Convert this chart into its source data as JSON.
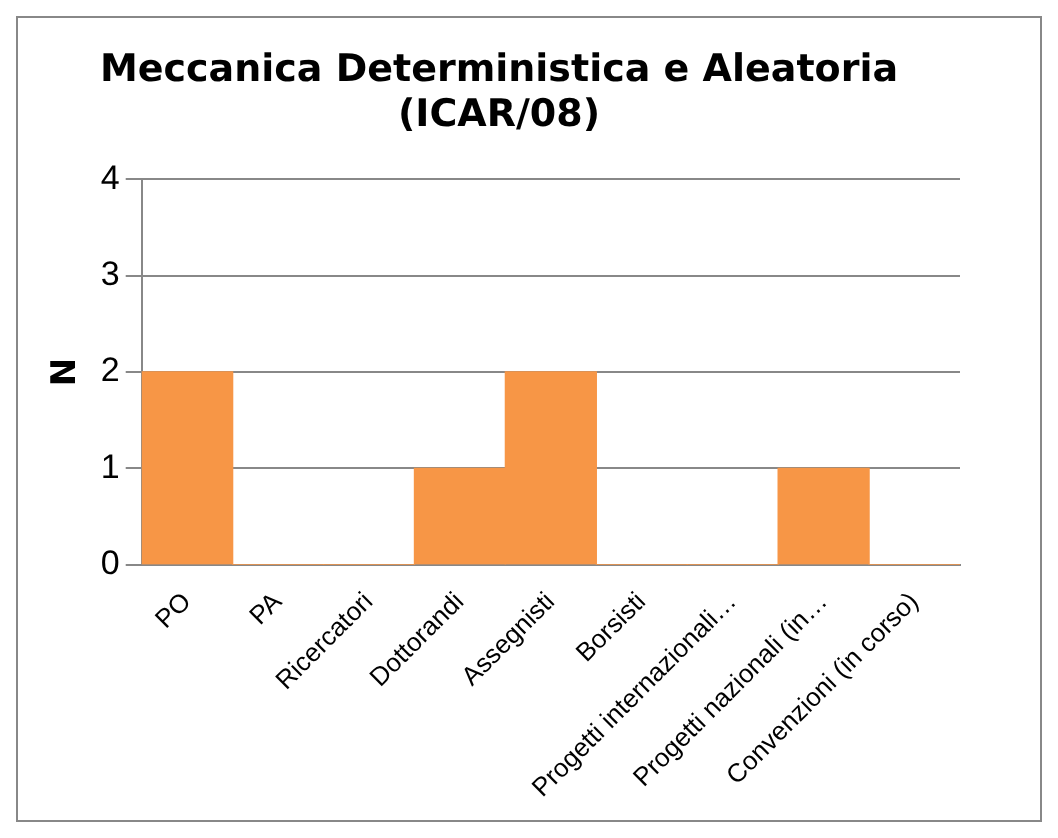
{
  "chart_data": {
    "type": "bar",
    "title": "Meccanica Deterministica e Aleatoria\n(ICAR/08)",
    "ylabel": "N",
    "categories": [
      "PO",
      "PA",
      "Ricercatori",
      "Dottorandi",
      "Assegnisti",
      "Borsisti",
      "Progetti internazionali…",
      "Progetti nazionali (in…",
      "Convenzioni (in corso)"
    ],
    "values": [
      2,
      0,
      0,
      1,
      2,
      0,
      0,
      1,
      0
    ],
    "color": "#f79646",
    "ylim": [
      0,
      4
    ],
    "yticks": [
      0,
      1,
      2,
      3,
      4
    ],
    "grid": "y",
    "legend": false
  }
}
